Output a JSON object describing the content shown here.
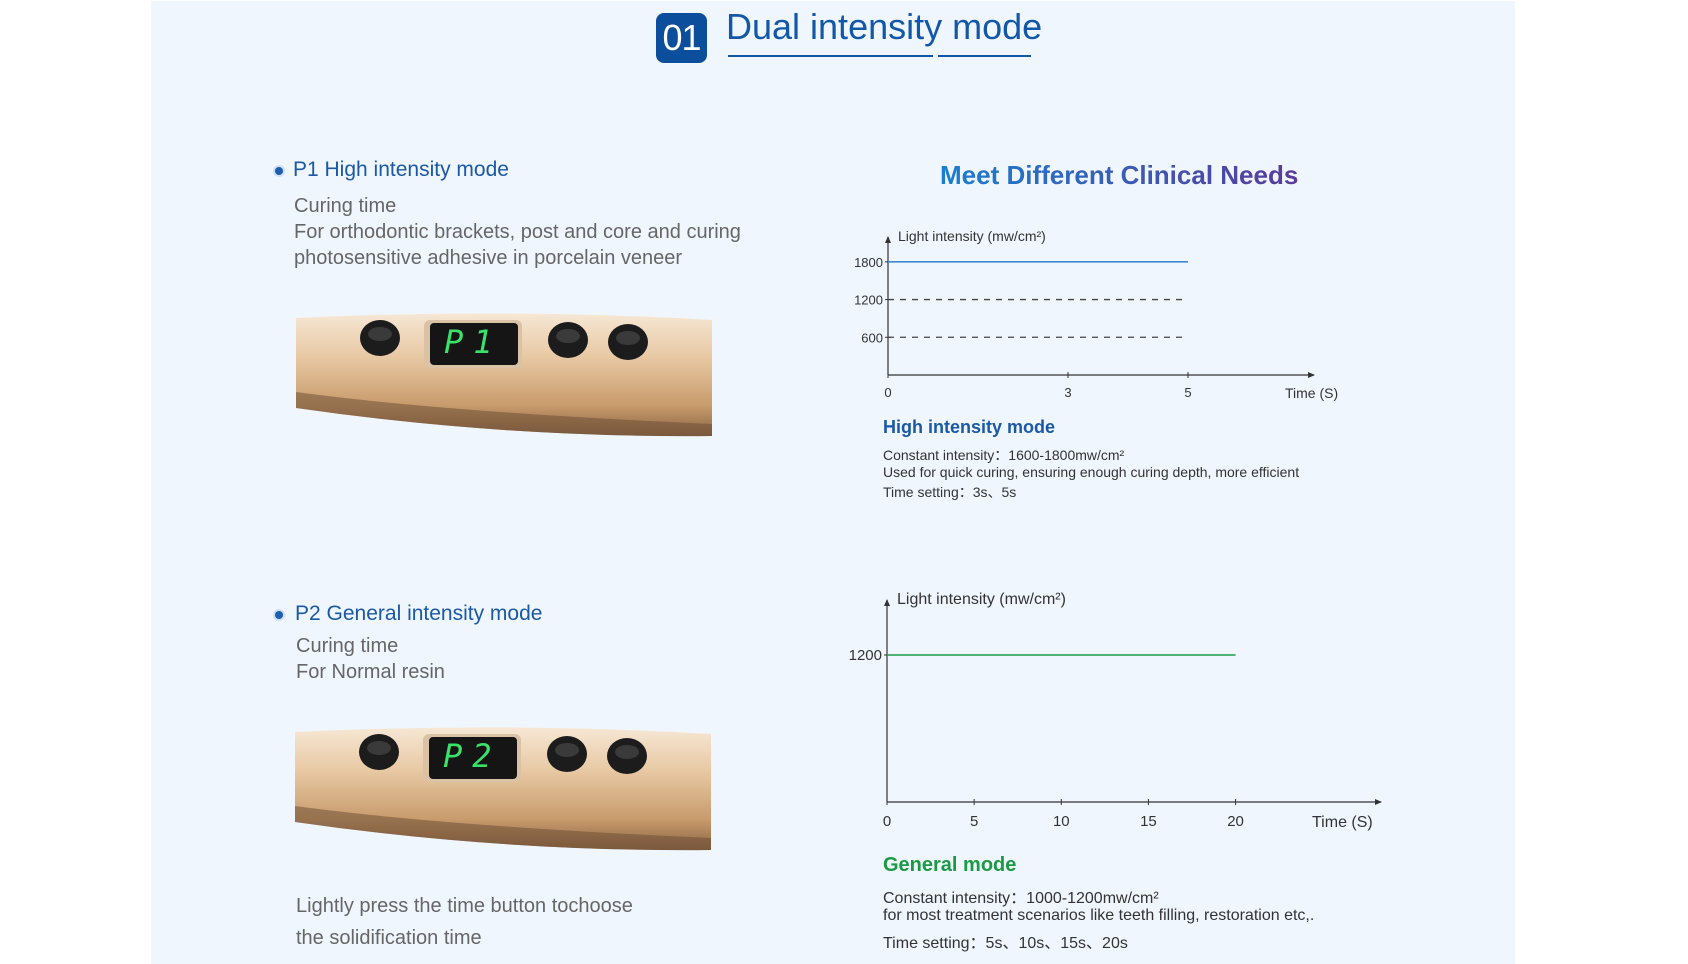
{
  "header": {
    "number": "01",
    "title": "Dual intensity mode"
  },
  "modes": [
    {
      "heading": "P1 High intensity mode",
      "lines": [
        "Curing time",
        "For orthodontic brackets, post and core and curing",
        "photosensitive adhesive in porcelain veneer"
      ],
      "display": "P1"
    },
    {
      "heading": "P2 General intensity mode",
      "lines": [
        "Curing time",
        "For Normal resin"
      ],
      "display": "P2"
    }
  ],
  "footer_note": [
    "Lightly press the time button tochoose",
    "the solidification time"
  ],
  "right_heading": "Meet Different Clinical Needs",
  "colors": {
    "brand_blue": "#0b4f9c",
    "heading_gradient_start": "#1a7fd0",
    "heading_gradient_end": "#5a3a9c",
    "high_line": "#3a8ad6",
    "general_line": "#1f9c4a",
    "general_title": "#1a9a45",
    "display_green": "#39e36a",
    "panel_bg": "#eff6fd"
  },
  "chart_data": [
    {
      "type": "line",
      "ylabel": "Light intensity",
      "yunit": "(mw/cm²)",
      "xlabel": "Time",
      "xunit": "(S)",
      "x_ticks": [
        0,
        3,
        5
      ],
      "y_ticks": [
        600,
        1200,
        1800
      ],
      "xlim": [
        0,
        7
      ],
      "ylim": [
        0,
        2100
      ],
      "series": [
        {
          "style": "solid",
          "x": [
            0,
            5
          ],
          "y": [
            1800,
            1800
          ]
        },
        {
          "style": "dashed",
          "x": [
            0,
            5
          ],
          "y": [
            1200,
            1200
          ]
        },
        {
          "style": "dashed",
          "x": [
            0,
            5
          ],
          "y": [
            600,
            600
          ]
        }
      ],
      "caption_title": "High intensity mode",
      "caption_lines": [
        "Constant intensity：1600-1800mw/cm²",
        "Used for quick curing, ensuring enough curing depth, more efficient",
        "Time setting：3s、5s"
      ]
    },
    {
      "type": "line",
      "ylabel": "Light intensity",
      "yunit": "(mw/cm²)",
      "xlabel": "Time",
      "xunit": "(S)",
      "x_ticks": [
        0,
        5,
        10,
        15,
        20
      ],
      "y_ticks": [
        1200
      ],
      "xlim": [
        0,
        28
      ],
      "ylim": [
        0,
        1600
      ],
      "series": [
        {
          "style": "solid",
          "x": [
            0,
            20
          ],
          "y": [
            1200,
            1200
          ]
        }
      ],
      "caption_title": "General mode",
      "caption_lines": [
        "Constant intensity：1000-1200mw/cm²",
        "for most treatment scenarios like teeth filling, restoration etc,.",
        "Time setting：5s、10s、15s、20s"
      ]
    }
  ]
}
